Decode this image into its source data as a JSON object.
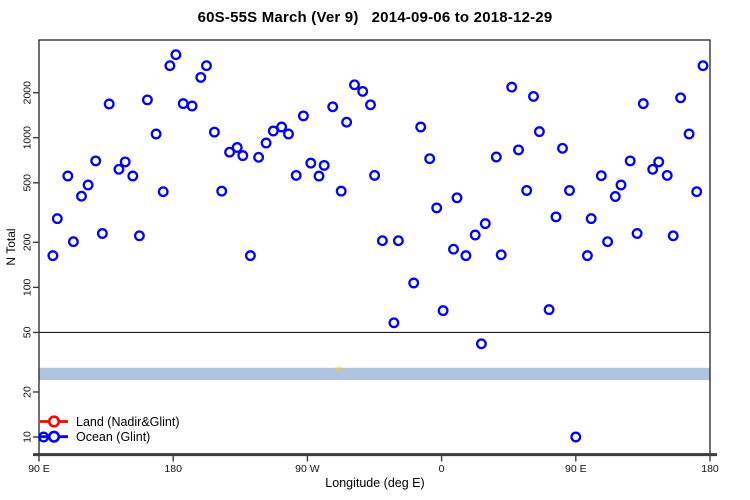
{
  "chart_data": {
    "type": "scatter",
    "title": "60S-55S March (Ver 9)   2014-09-06 to 2018-12-29",
    "xlabel": "Longitude (deg E)",
    "ylabel": "N Total",
    "x_axis": {
      "note": "longitude axis spans 450 deg starting at 90E; points in 90E-180 range are plotted twice",
      "range_deg": [
        90,
        540
      ],
      "ticks_deg": [
        90,
        180,
        270,
        360,
        450,
        540
      ],
      "tick_labels": [
        "90 E",
        "180",
        "90 W",
        "0",
        "90 E",
        "180"
      ]
    },
    "y_axis": {
      "scale": "log",
      "range": [
        7.7,
        4500
      ],
      "ticks": [
        10,
        20,
        50,
        100,
        200,
        500,
        1000,
        2000
      ],
      "tick_labels": [
        "10",
        "20",
        "50",
        "100",
        "200",
        "500",
        "1000",
        "2000"
      ]
    },
    "grid": "off",
    "hline": {
      "y": 50,
      "color": "#000000"
    },
    "band": {
      "y_min": 24,
      "y_max": 29,
      "color": "#b0c4de"
    },
    "stray_mark": {
      "x_deg": 291,
      "y": 28.5,
      "color": "#f0c25c"
    },
    "legend": {
      "position": "bottom-left",
      "items": [
        {
          "label": "Land (Nadir&Glint)",
          "color": "#ff0000"
        },
        {
          "label": "Ocean (Glint)",
          "color": "#0000ff"
        }
      ]
    },
    "series": [
      {
        "name": "Ocean (Glint)",
        "color": "#0000ff",
        "marker": "open-circle",
        "points": [
          [
            93.1,
            10
          ],
          [
            99.3,
            163
          ],
          [
            102.3,
            288
          ],
          [
            109.3,
            555
          ],
          [
            113.1,
            202
          ],
          [
            118.5,
            407
          ],
          [
            122.9,
            483
          ],
          [
            128,
            700
          ],
          [
            132.5,
            229
          ],
          [
            137.1,
            1680
          ],
          [
            143.6,
            615
          ],
          [
            147.8,
            690
          ],
          [
            152.9,
            555
          ],
          [
            157.3,
            221
          ],
          [
            162.7,
            1790
          ],
          [
            168.5,
            1060
          ],
          [
            173.3,
            436
          ],
          [
            177.8,
            3030
          ],
          [
            181.8,
            3590
          ],
          [
            186.7,
            1690
          ],
          [
            192.7,
            1630
          ],
          [
            198.5,
            2530
          ],
          [
            202.3,
            3030
          ],
          [
            207.6,
            1090
          ],
          [
            212.5,
            440
          ],
          [
            217.8,
            800
          ],
          [
            222.9,
            860
          ],
          [
            226.7,
            760
          ],
          [
            231.8,
            163
          ],
          [
            237.3,
            740
          ],
          [
            242.3,
            922
          ],
          [
            247.1,
            1110
          ],
          [
            252.7,
            1180
          ],
          [
            257.3,
            1060
          ],
          [
            262.5,
            560
          ],
          [
            267.3,
            1400
          ],
          [
            272.3,
            677
          ],
          [
            277.8,
            554
          ],
          [
            281.3,
            653
          ],
          [
            287,
            1610
          ],
          [
            292.7,
            440
          ],
          [
            296.3,
            1270
          ],
          [
            301.6,
            2260
          ],
          [
            307.1,
            2040
          ],
          [
            312.3,
            1660
          ],
          [
            315.1,
            560
          ],
          [
            320.3,
            205
          ],
          [
            328,
            58
          ],
          [
            331,
            205
          ],
          [
            341.3,
            107
          ],
          [
            346,
            1180
          ],
          [
            352,
            724
          ],
          [
            356.7,
            340
          ],
          [
            361,
            70
          ],
          [
            368,
            180
          ],
          [
            370.3,
            397
          ],
          [
            376.3,
            163
          ],
          [
            382.5,
            224
          ],
          [
            386.7,
            42
          ],
          [
            389.3,
            267
          ],
          [
            396.7,
            743
          ],
          [
            400,
            165
          ],
          [
            407,
            2180
          ],
          [
            411.6,
            830
          ],
          [
            417.1,
            444
          ],
          [
            421.6,
            1890
          ],
          [
            425.6,
            1100
          ],
          [
            432.1,
            71
          ],
          [
            436.7,
            296
          ],
          [
            441.1,
            850
          ],
          [
            445.8,
            444
          ],
          [
            450,
            10
          ],
          [
            457.8,
            163
          ],
          [
            460.3,
            288
          ],
          [
            467.1,
            558
          ],
          [
            471.3,
            202
          ],
          [
            476.5,
            405
          ],
          [
            480.3,
            483
          ],
          [
            486.5,
            700
          ],
          [
            491.1,
            229
          ],
          [
            495.3,
            1690
          ],
          [
            501.6,
            615
          ],
          [
            505.6,
            690
          ],
          [
            511.3,
            560
          ],
          [
            515.3,
            221
          ],
          [
            520.3,
            1850
          ],
          [
            526,
            1060
          ],
          [
            531.1,
            436
          ],
          [
            535.3,
            3030
          ]
        ]
      },
      {
        "name": "Land (Nadir&Glint)",
        "color": "#ff0000",
        "marker": "open-circle",
        "points": []
      }
    ]
  }
}
